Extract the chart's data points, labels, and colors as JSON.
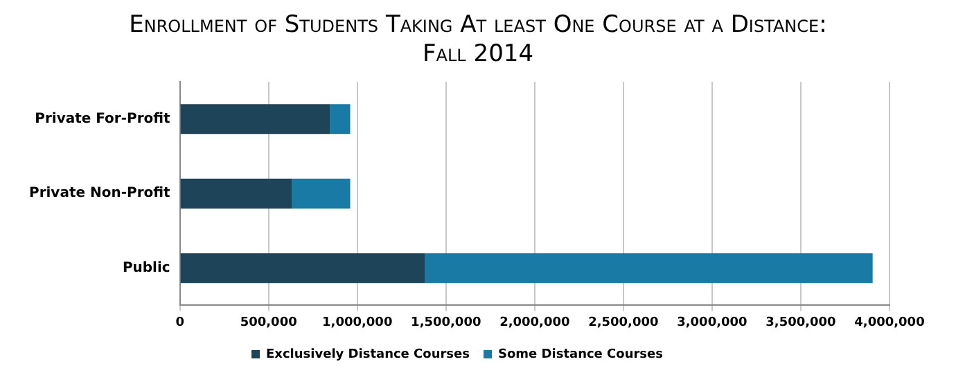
{
  "chart_data": {
    "type": "bar",
    "title": "Enrollment of Students Taking At least One Course at a Distance:",
    "subtitle": "Fall 2014",
    "orientation": "horizontal",
    "stacked": true,
    "categories": [
      "Private For-Profit",
      "Private Non-Profit",
      "Public"
    ],
    "series": [
      {
        "name": "Exclusively Distance Courses",
        "color": "#1d4459",
        "values": [
          845000,
          630000,
          1380000
        ]
      },
      {
        "name": "Some Distance Courses",
        "color": "#1a7aa6",
        "values": [
          115000,
          330000,
          2525000
        ]
      }
    ],
    "xlim": [
      0,
      4000000
    ],
    "xticks": [
      {
        "value": 0,
        "label": "0"
      },
      {
        "value": 500000,
        "label": "500,000"
      },
      {
        "value": 1000000,
        "label": "1,000,000"
      },
      {
        "value": 1500000,
        "label": "1,500,000"
      },
      {
        "value": 2000000,
        "label": "2,000,000"
      },
      {
        "value": 2500000,
        "label": "2,500,000"
      },
      {
        "value": 3000000,
        "label": "3,000,000"
      },
      {
        "value": 3500000,
        "label": "3,500,000"
      },
      {
        "value": 4000000,
        "label": "4,000,000"
      }
    ],
    "grid": "x",
    "legend": "bottom"
  }
}
